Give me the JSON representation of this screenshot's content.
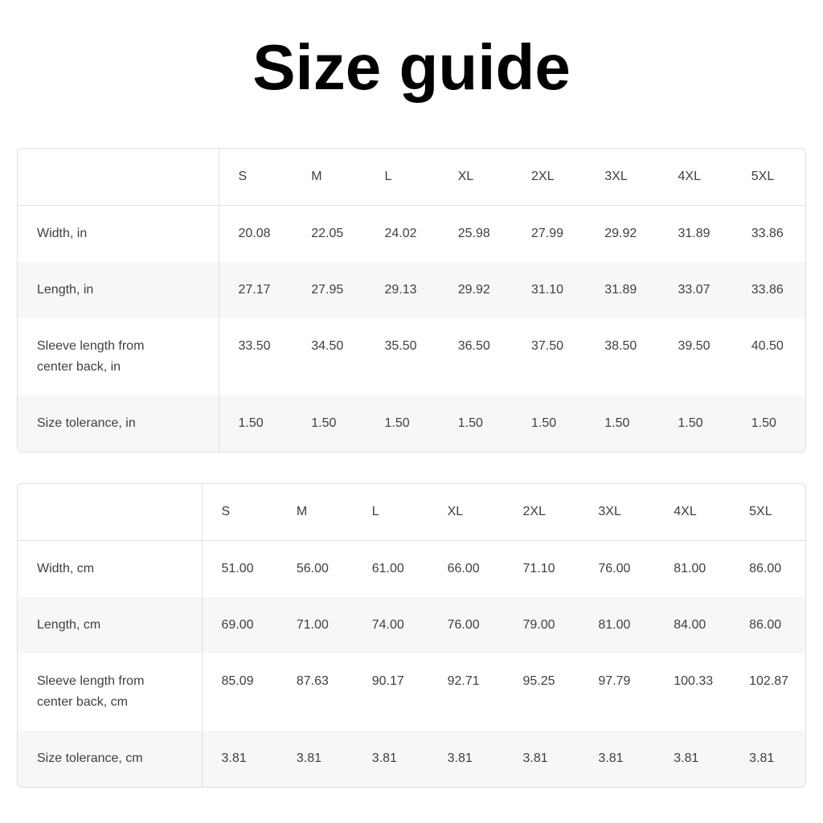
{
  "page": {
    "title": "Size guide"
  },
  "sizes": [
    "S",
    "M",
    "L",
    "XL",
    "2XL",
    "3XL",
    "4XL",
    "5XL"
  ],
  "tables": [
    {
      "name": "inches",
      "rows": [
        {
          "label": "Width, in",
          "values": [
            "20.08",
            "22.05",
            "24.02",
            "25.98",
            "27.99",
            "29.92",
            "31.89",
            "33.86"
          ]
        },
        {
          "label": "Length, in",
          "values": [
            "27.17",
            "27.95",
            "29.13",
            "29.92",
            "31.10",
            "31.89",
            "33.07",
            "33.86"
          ]
        },
        {
          "label": "Sleeve length from center back, in",
          "values": [
            "33.50",
            "34.50",
            "35.50",
            "36.50",
            "37.50",
            "38.50",
            "39.50",
            "40.50"
          ]
        },
        {
          "label": "Size tolerance, in",
          "values": [
            "1.50",
            "1.50",
            "1.50",
            "1.50",
            "1.50",
            "1.50",
            "1.50",
            "1.50"
          ]
        }
      ]
    },
    {
      "name": "centimeters",
      "rows": [
        {
          "label": "Width, cm",
          "values": [
            "51.00",
            "56.00",
            "61.00",
            "66.00",
            "71.10",
            "76.00",
            "81.00",
            "86.00"
          ]
        },
        {
          "label": "Length, cm",
          "values": [
            "69.00",
            "71.00",
            "74.00",
            "76.00",
            "79.00",
            "81.00",
            "84.00",
            "86.00"
          ]
        },
        {
          "label": "Sleeve length from center back, cm",
          "values": [
            "85.09",
            "87.63",
            "90.17",
            "92.71",
            "95.25",
            "97.79",
            "100.33",
            "102.87"
          ]
        },
        {
          "label": "Size tolerance, cm",
          "values": [
            "3.81",
            "3.81",
            "3.81",
            "3.81",
            "3.81",
            "3.81",
            "3.81",
            "3.81"
          ]
        }
      ]
    }
  ],
  "colors": {
    "background": "#ffffff",
    "title_text": "#000000",
    "table_text": "#3c4043",
    "table_border": "#e0e0e0",
    "row_stripe": "#f7f7f7"
  }
}
